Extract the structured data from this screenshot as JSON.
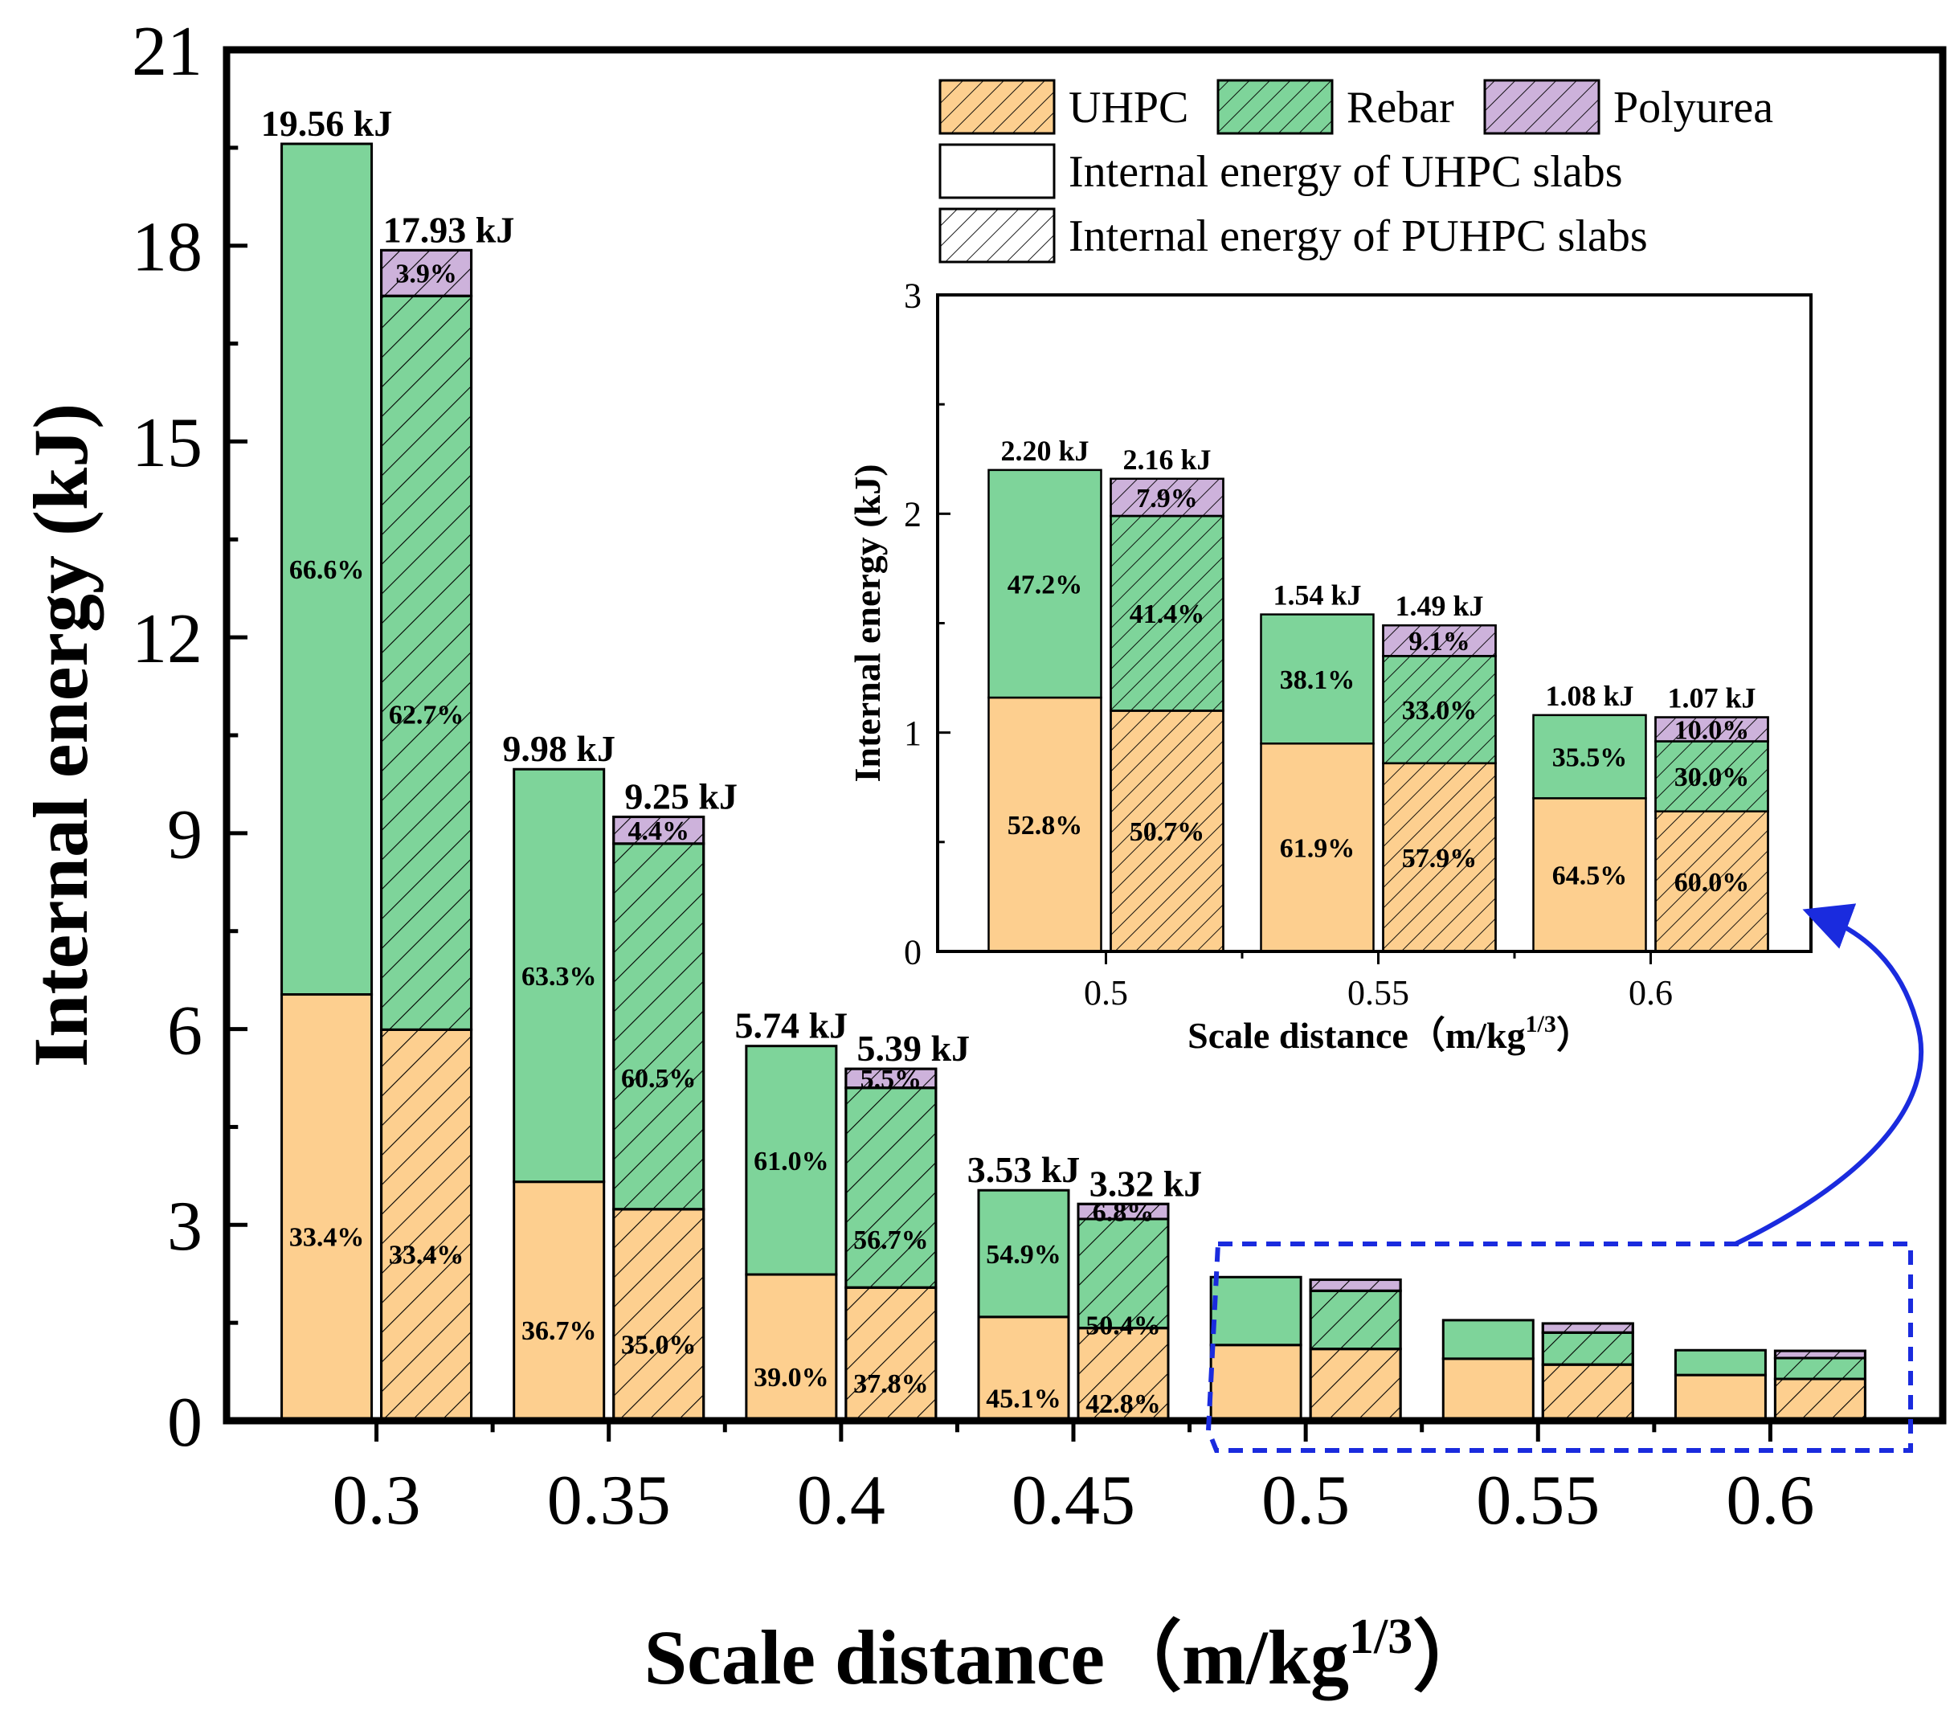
{
  "colors": {
    "uhpc": "#FDCF8F",
    "rebar": "#7ED49A",
    "polyurea": "#CDB2DB",
    "highlight": "#1A2BDE"
  },
  "legend": {
    "uhpc": "UHPC",
    "rebar": "Rebar",
    "polyurea": "Polyurea",
    "solid": "Internal energy of UHPC slabs",
    "hatched": "Internal energy of PUHPC slabs"
  },
  "chart_data": [
    {
      "type": "bar",
      "stacked": true,
      "title": "",
      "xlabel": "Scale distance（m/kg",
      "xlabel_sup": "1/3",
      "xlabel_end": "）",
      "ylabel": "Internal energy (kJ)",
      "ylim": [
        0,
        21
      ],
      "yticks": [
        "0",
        "3",
        "6",
        "9",
        "12",
        "15",
        "18",
        "21"
      ],
      "categories": [
        "0.3",
        "0.35",
        "0.4",
        "0.45",
        "0.5",
        "0.55",
        "0.6"
      ],
      "series": [
        {
          "name": "Internal energy of UHPC slabs",
          "totals": [
            19.56,
            9.98,
            5.74,
            3.53,
            2.2,
            1.54,
            1.08
          ],
          "total_labels": [
            "19.56 kJ",
            "9.98 kJ",
            "5.74 kJ",
            "3.53 kJ",
            "",
            "",
            ""
          ],
          "uhpc": [
            6.53,
            3.66,
            2.24,
            1.59,
            1.16,
            0.95,
            0.7
          ],
          "rebar": [
            13.03,
            6.32,
            3.5,
            1.94,
            1.04,
            0.59,
            0.38
          ],
          "polyurea": [
            0,
            0,
            0,
            0,
            0,
            0,
            0
          ],
          "uhpc_labels": [
            "33.4%",
            "36.7%",
            "39.0%",
            "45.1%",
            "",
            "",
            ""
          ],
          "rebar_labels": [
            "66.6%",
            "63.3%",
            "61.0%",
            "54.9%",
            "",
            "",
            ""
          ],
          "polyurea_labels": [
            "",
            "",
            "",
            "",
            "",
            "",
            ""
          ]
        },
        {
          "name": "Internal energy of PUHPC slabs",
          "totals": [
            17.93,
            9.25,
            5.39,
            3.32,
            2.16,
            1.49,
            1.07
          ],
          "total_labels": [
            "17.93 kJ",
            "9.25 kJ",
            "5.39 kJ",
            "3.32 kJ",
            "",
            "",
            ""
          ],
          "uhpc": [
            5.99,
            3.24,
            2.04,
            1.42,
            1.1,
            0.86,
            0.64
          ],
          "rebar": [
            11.24,
            5.6,
            3.06,
            1.67,
            0.89,
            0.49,
            0.32
          ],
          "polyurea": [
            0.7,
            0.41,
            0.29,
            0.23,
            0.17,
            0.14,
            0.11
          ],
          "uhpc_labels": [
            "33.4%",
            "35.0%",
            "37.8%",
            "42.8%",
            "",
            "",
            ""
          ],
          "rebar_labels": [
            "62.7%",
            "60.5%",
            "56.7%",
            "50.4%",
            "",
            "",
            ""
          ],
          "polyurea_labels": [
            "3.9%",
            "4.4%",
            "5.5%",
            "6.8%",
            "",
            "",
            ""
          ]
        }
      ],
      "annotation": "dashed box around 0.5–0.6 with arrow to inset"
    },
    {
      "type": "bar",
      "stacked": true,
      "title": "inset",
      "xlabel": "Scale distance（m/kg",
      "xlabel_sup": "1/3",
      "xlabel_end": "）",
      "ylabel": "Internal energy (kJ)",
      "ylim": [
        0,
        3
      ],
      "yticks": [
        "0",
        "1",
        "2",
        "3"
      ],
      "categories": [
        "0.5",
        "0.55",
        "0.6"
      ],
      "series": [
        {
          "name": "Internal energy of UHPC slabs",
          "totals": [
            2.2,
            1.54,
            1.08
          ],
          "total_labels": [
            "2.20 kJ",
            "1.54 kJ",
            "1.08 kJ"
          ],
          "uhpc": [
            1.16,
            0.95,
            0.7
          ],
          "rebar": [
            1.04,
            0.59,
            0.38
          ],
          "polyurea": [
            0,
            0,
            0
          ],
          "uhpc_labels": [
            "52.8%",
            "61.9%",
            "64.5%"
          ],
          "rebar_labels": [
            "47.2%",
            "38.1%",
            "35.5%"
          ],
          "polyurea_labels": [
            "",
            "",
            ""
          ]
        },
        {
          "name": "Internal energy of PUHPC slabs",
          "totals": [
            2.16,
            1.49,
            1.07
          ],
          "total_labels": [
            "2.16 kJ",
            "1.49 kJ",
            "1.07 kJ"
          ],
          "uhpc": [
            1.1,
            0.86,
            0.64
          ],
          "rebar": [
            0.89,
            0.49,
            0.32
          ],
          "polyurea": [
            0.17,
            0.14,
            0.11
          ],
          "uhpc_labels": [
            "50.7%",
            "57.9%",
            "60.0%"
          ],
          "rebar_labels": [
            "41.4%",
            "33.0%",
            "30.0%"
          ],
          "polyurea_labels": [
            "7.9%",
            "9.1%",
            "10.0%"
          ]
        }
      ]
    }
  ]
}
